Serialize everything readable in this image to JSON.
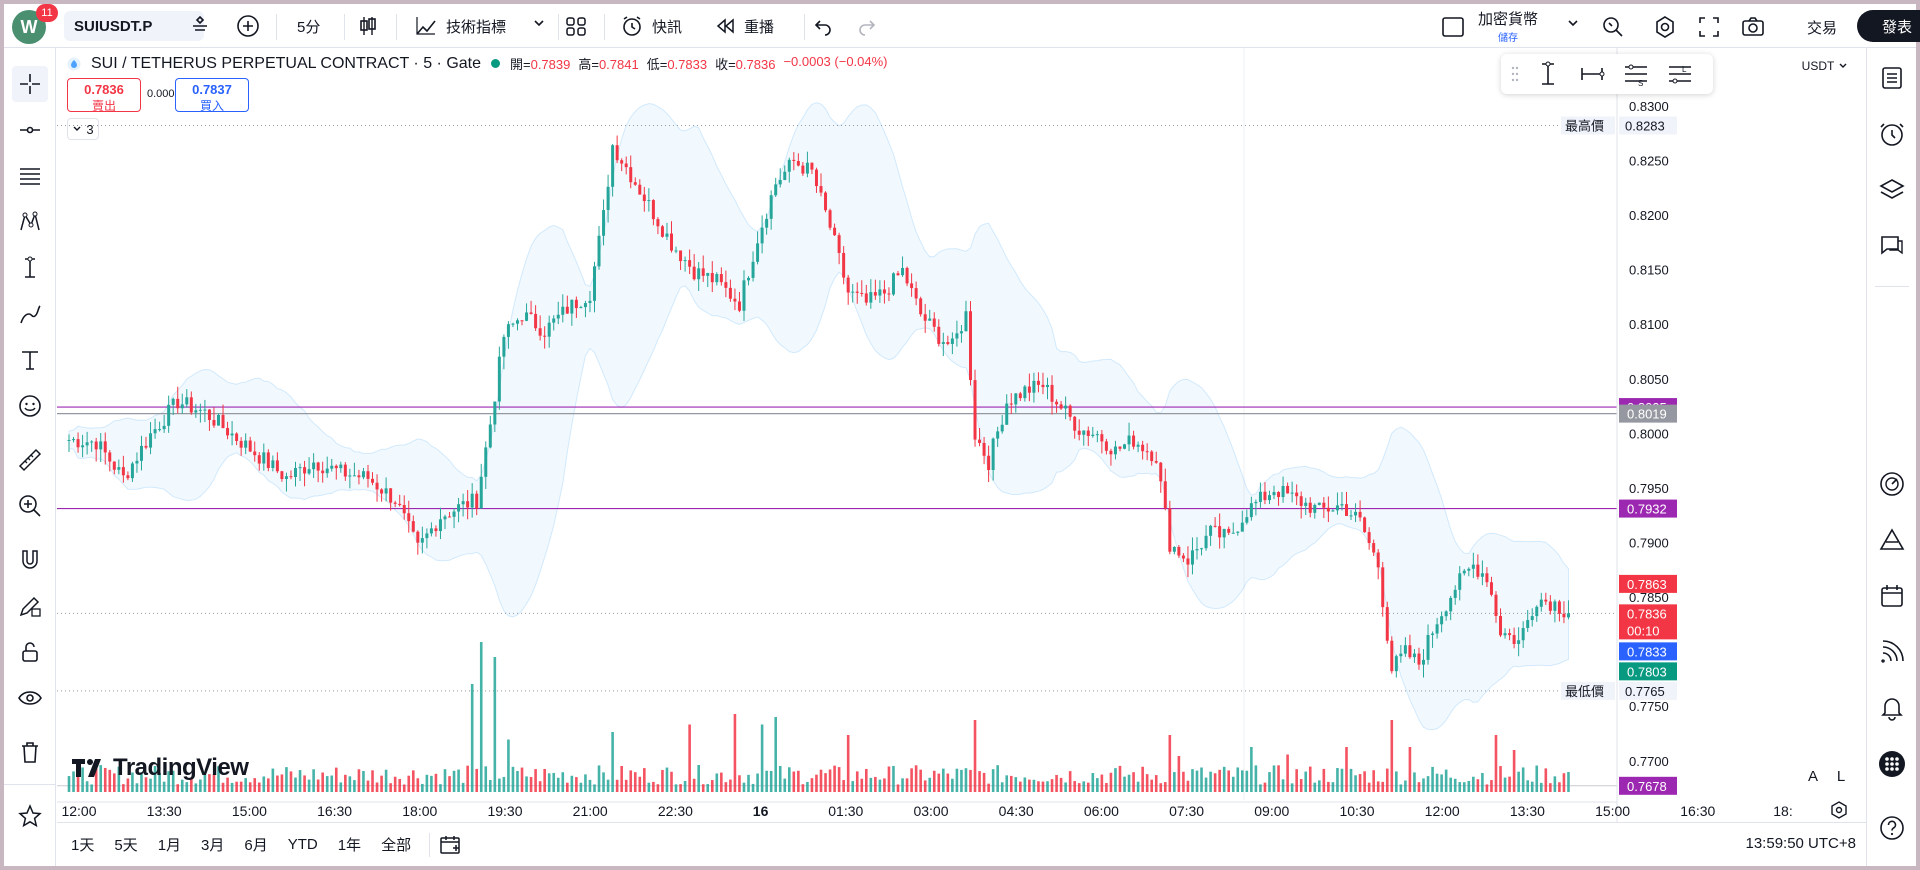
{
  "topbar": {
    "avatar_letter": "W",
    "notification_count": "11",
    "symbol": "SUIUSDT.P",
    "interval": "5分",
    "indicators_label": "技術指標",
    "alert_label": "快訊",
    "replay_label": "重播",
    "layout_name": "加密貨幣",
    "layout_sub": "儲存",
    "trade_label": "交易",
    "publish_label": "發表"
  },
  "legend": {
    "title": "SUI / TETHERUS PERPETUAL CONTRACT · 5 · Gate",
    "open_label": "開=",
    "open": "0.7839",
    "high_label": "高=",
    "high": "0.7841",
    "low_label": "低=",
    "low": "0.7833",
    "close_label": "收=",
    "close": "0.7836",
    "change": "−0.0003 (−0.04%)",
    "sell_price": "0.7836",
    "sell_label": "賣出",
    "spread": "0.0001",
    "buy_price": "0.7837",
    "buy_label": "買入",
    "indicator_count": "3"
  },
  "chart_toolbar": {
    "currency": "USDT",
    "axis_auto": "A",
    "axis_log": "L",
    "logo_text": "TradingView"
  },
  "colors": {
    "up": "#26a69a",
    "down": "#f23645",
    "band": "#2196f3",
    "level_purple": "#9c27b0",
    "level_gray": "#9598a1",
    "blue": "#2962ff",
    "green": "#089981"
  },
  "chart_data": {
    "type": "candlestick",
    "y_ticks": [
      "0.8300",
      "0.8250",
      "0.8200",
      "0.8150",
      "0.8100",
      "0.8050",
      "0.8000",
      "0.7950",
      "0.7900",
      "0.7850",
      "0.7800",
      "0.7750",
      "0.7700"
    ],
    "y_range": [
      0.7665,
      0.831
    ],
    "x_ticks": [
      "12:00",
      "13:30",
      "15:00",
      "16:30",
      "18:00",
      "19:30",
      "21:00",
      "22:30",
      "16",
      "01:30",
      "03:00",
      "04:30",
      "06:00",
      "07:30",
      "09:00",
      "10:30",
      "12:00",
      "13:30",
      "15:00",
      "16:30",
      "18:"
    ],
    "price_labels": [
      {
        "text": "最高價",
        "value": "0.8283",
        "kind": "high"
      },
      {
        "text": "",
        "value": "0.8025",
        "kind": "purple"
      },
      {
        "text": "",
        "value": "0.8019",
        "kind": "gray"
      },
      {
        "text": "",
        "value": "0.7932",
        "kind": "purple"
      },
      {
        "text": "",
        "value": "0.7863",
        "kind": "red"
      },
      {
        "text": "",
        "value": "0.7836",
        "kind": "red"
      },
      {
        "text": "",
        "value": "00:10",
        "kind": "countdown"
      },
      {
        "text": "",
        "value": "0.7833",
        "kind": "blue"
      },
      {
        "text": "",
        "value": "0.7803",
        "kind": "green"
      },
      {
        "text": "最低價",
        "value": "0.7765",
        "kind": "low"
      },
      {
        "text": "",
        "value": "0.7678",
        "kind": "purple"
      }
    ],
    "horizontal_levels": [
      0.8025,
      0.8019,
      0.7932,
      0.7678
    ],
    "path_keypoints": [
      [
        0,
        0.7995
      ],
      [
        6,
        0.7993
      ],
      [
        12,
        0.796
      ],
      [
        18,
        0.8
      ],
      [
        24,
        0.803
      ],
      [
        30,
        0.802
      ],
      [
        36,
        0.8
      ],
      [
        42,
        0.798
      ],
      [
        48,
        0.796
      ],
      [
        54,
        0.7975
      ],
      [
        60,
        0.7965
      ],
      [
        66,
        0.796
      ],
      [
        72,
        0.794
      ],
      [
        77,
        0.7895
      ],
      [
        82,
        0.7925
      ],
      [
        87,
        0.7935
      ],
      [
        90,
        0.794
      ],
      [
        93,
        0.801
      ],
      [
        96,
        0.809
      ],
      [
        100,
        0.811
      ],
      [
        105,
        0.8095
      ],
      [
        110,
        0.8115
      ],
      [
        115,
        0.813
      ],
      [
        118,
        0.82
      ],
      [
        120,
        0.8265
      ],
      [
        123,
        0.8245
      ],
      [
        128,
        0.821
      ],
      [
        133,
        0.8175
      ],
      [
        138,
        0.815
      ],
      [
        143,
        0.814
      ],
      [
        148,
        0.812
      ],
      [
        152,
        0.818
      ],
      [
        156,
        0.823
      ],
      [
        160,
        0.825
      ],
      [
        164,
        0.824
      ],
      [
        168,
        0.819
      ],
      [
        172,
        0.813
      ],
      [
        176,
        0.812
      ],
      [
        180,
        0.813
      ],
      [
        184,
        0.815
      ],
      [
        188,
        0.811
      ],
      [
        192,
        0.809
      ],
      [
        195,
        0.808
      ],
      [
        198,
        0.811
      ],
      [
        200,
        0.8
      ],
      [
        203,
        0.7975
      ],
      [
        207,
        0.803
      ],
      [
        211,
        0.804
      ],
      [
        215,
        0.8045
      ],
      [
        219,
        0.8025
      ],
      [
        223,
        0.8005
      ],
      [
        227,
        0.8
      ],
      [
        231,
        0.7985
      ],
      [
        235,
        0.7995
      ],
      [
        240,
        0.798
      ],
      [
        243,
        0.79
      ],
      [
        247,
        0.7885
      ],
      [
        252,
        0.791
      ],
      [
        256,
        0.7905
      ],
      [
        260,
        0.793
      ],
      [
        266,
        0.795
      ],
      [
        271,
        0.794
      ],
      [
        276,
        0.793
      ],
      [
        281,
        0.7935
      ],
      [
        285,
        0.792
      ],
      [
        289,
        0.788
      ],
      [
        292,
        0.7785
      ],
      [
        295,
        0.78
      ],
      [
        298,
        0.779
      ],
      [
        302,
        0.783
      ],
      [
        306,
        0.786
      ],
      [
        310,
        0.788
      ],
      [
        313,
        0.787
      ],
      [
        316,
        0.782
      ],
      [
        320,
        0.781
      ],
      [
        324,
        0.785
      ],
      [
        328,
        0.7845
      ],
      [
        331,
        0.7836
      ]
    ],
    "bar_count": 332,
    "volume_spikes": [
      [
        89,
        0.72
      ],
      [
        91,
        1.0
      ],
      [
        94,
        0.9
      ],
      [
        97,
        0.35
      ],
      [
        120,
        0.4
      ],
      [
        137,
        0.45
      ],
      [
        147,
        0.52
      ],
      [
        153,
        0.45
      ],
      [
        156,
        0.5
      ],
      [
        172,
        0.38
      ],
      [
        200,
        0.48
      ],
      [
        243,
        0.38
      ],
      [
        245,
        0.24
      ],
      [
        261,
        0.3
      ],
      [
        269,
        0.25
      ],
      [
        282,
        0.3
      ],
      [
        292,
        0.48
      ],
      [
        296,
        0.3
      ],
      [
        315,
        0.38
      ],
      [
        319,
        0.28
      ]
    ]
  },
  "left_tools": [
    "crosshair-icon",
    "trend-line-icon",
    "fib-icon",
    "pattern-icon",
    "measure-icon",
    "brush-icon",
    "text-icon",
    "emoji-icon",
    "ruler-icon",
    "zoom-in-icon",
    "magnet-icon",
    "lock-pencil-icon",
    "lock-icon",
    "eye-icon",
    "trash-icon",
    "star-icon"
  ],
  "right_tools": [
    "watchlist-icon",
    "clock-icon",
    "layers-icon",
    "chat-icon",
    "speedometer-icon",
    "triangle-icon",
    "calendar-icon",
    "broadcast-icon",
    "bell-icon",
    "apps-icon",
    "help-icon"
  ],
  "bottombar": {
    "ranges": [
      "1天",
      "5天",
      "1月",
      "3月",
      "6月",
      "YTD",
      "1年",
      "全部"
    ],
    "clock": "13:59:50 UTC+8"
  }
}
